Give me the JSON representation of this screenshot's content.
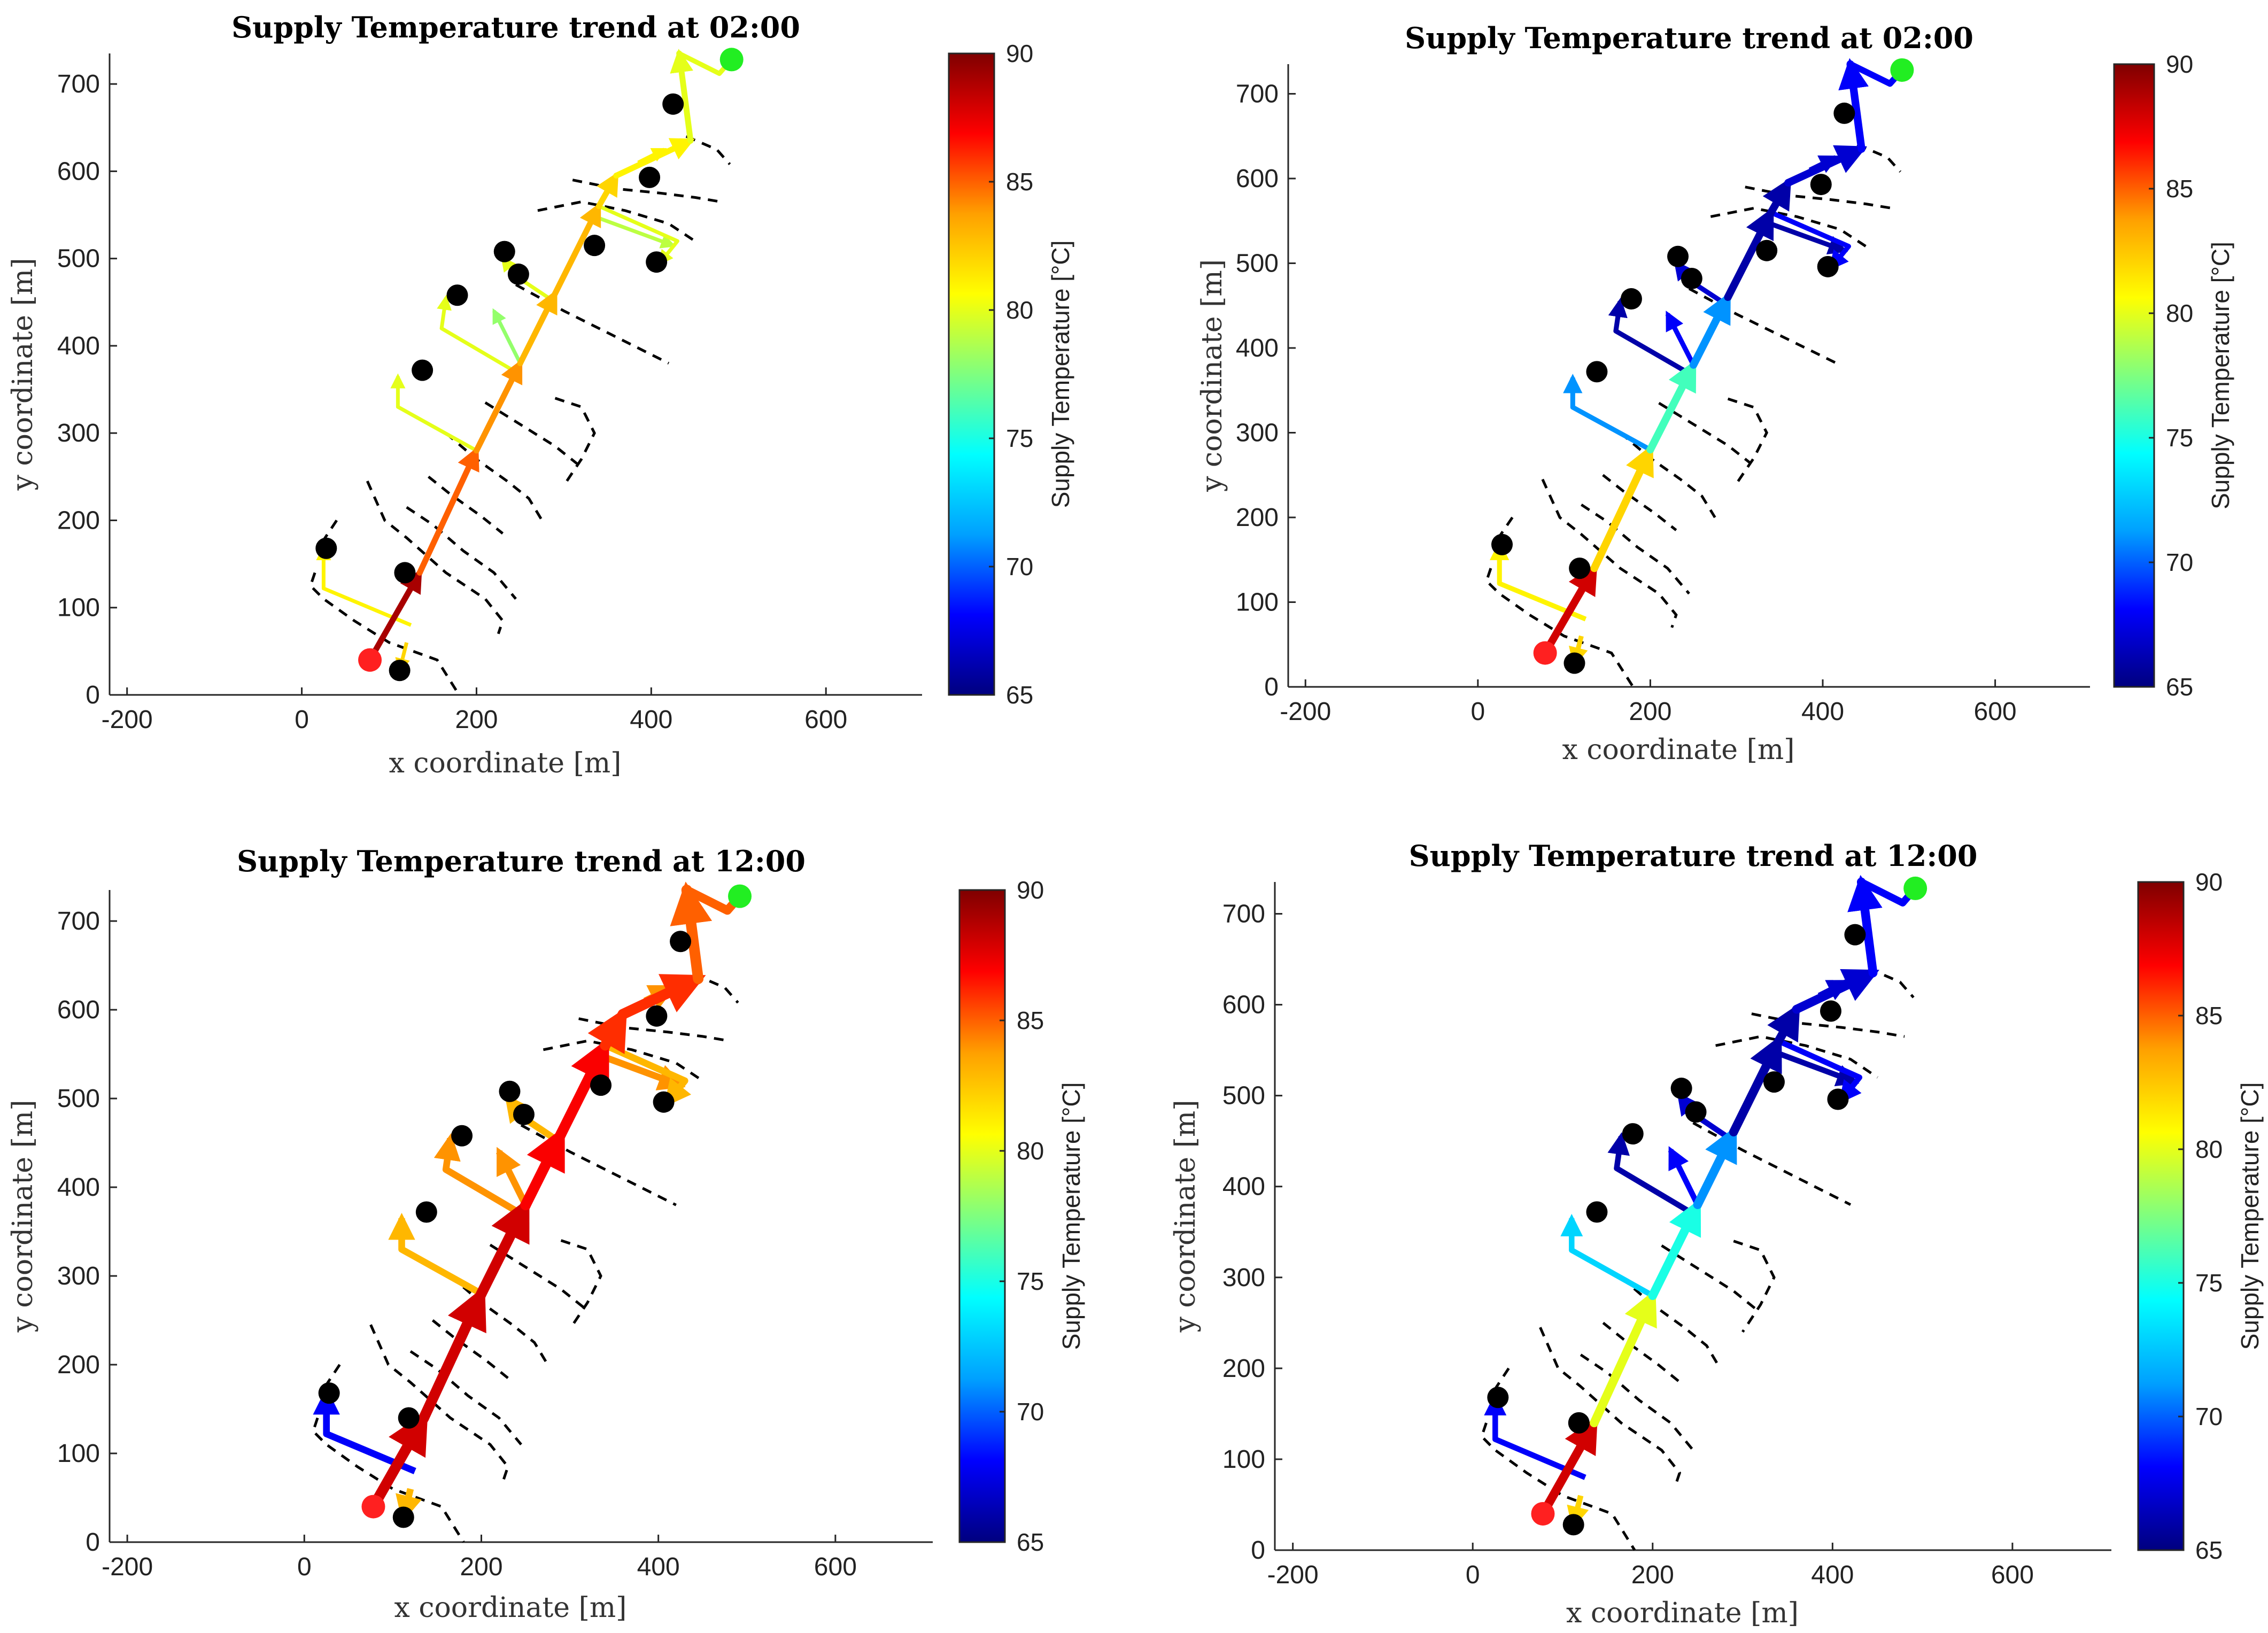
{
  "figure": {
    "description": "Four panels of a district heating network map coloured by supply temperature",
    "colormap": [
      "#00007f",
      "#0000ff",
      "#00a0ff",
      "#00ffff",
      "#7fff7f",
      "#ffff00",
      "#ffa000",
      "#ff0000",
      "#7f0000"
    ],
    "colors": {
      "source_node": "#ff2020",
      "end_node": "#22ee22",
      "building": "#000000",
      "return_line": "#000000"
    }
  },
  "chart_data": [
    {
      "type": "scatter",
      "title": "Supply Temperature trend at 02:00",
      "xlabel": "x coordinate [m]",
      "ylabel": "y coordinate [m]",
      "xlim": [
        -220,
        710
      ],
      "ylim": [
        0,
        735
      ],
      "xticks": [
        -200,
        0,
        200,
        400,
        600
      ],
      "yticks": [
        0,
        100,
        200,
        300,
        400,
        500,
        600,
        700
      ],
      "colorbar": {
        "label": "Supply Temperature [°C]",
        "range": [
          65,
          90
        ],
        "ticks": [
          65,
          70,
          75,
          80,
          85,
          90
        ]
      },
      "trunk_temps": [
        89,
        85,
        84,
        83,
        83,
        82,
        81,
        80
      ],
      "branch_temps": [
        82,
        81,
        80,
        80,
        80,
        79,
        81,
        78,
        80
      ],
      "line_width_scale": 1.0
    },
    {
      "type": "scatter",
      "title": "Supply Temperature trend at 02:00",
      "xlabel": "x coordinate [m]",
      "ylabel": "y coordinate [m]",
      "xlim": [
        -220,
        710
      ],
      "ylim": [
        0,
        735
      ],
      "xticks": [
        -200,
        0,
        200,
        400,
        600
      ],
      "yticks": [
        0,
        100,
        200,
        300,
        400,
        500,
        600,
        700
      ],
      "colorbar": {
        "label": "Supply Temperature [°C]",
        "range": [
          65,
          90
        ],
        "ticks": [
          65,
          70,
          75,
          80,
          85,
          90
        ]
      },
      "trunk_temps": [
        88,
        82,
        76,
        71,
        66,
        66,
        67,
        68
      ],
      "branch_temps": [
        82,
        81,
        71,
        66,
        67,
        66,
        67,
        68,
        68
      ],
      "line_width_scale": 1.3
    },
    {
      "type": "scatter",
      "title": "Supply Temperature trend at 12:00",
      "xlabel": "x coordinate [m]",
      "ylabel": "y coordinate [m]",
      "xlim": [
        -220,
        710
      ],
      "ylim": [
        0,
        735
      ],
      "xticks": [
        -200,
        0,
        200,
        400,
        600
      ],
      "yticks": [
        0,
        100,
        200,
        300,
        400,
        500,
        600,
        700
      ],
      "colorbar": {
        "label": "Supply Temperature [°C]",
        "range": [
          65,
          90
        ],
        "ticks": [
          65,
          70,
          75,
          80,
          85,
          90
        ]
      },
      "trunk_temps": [
        88,
        88,
        88,
        87,
        87,
        86,
        86,
        85
      ],
      "branch_temps": [
        83,
        68,
        83,
        84,
        83,
        84,
        84,
        84,
        83
      ],
      "line_width_scale": 1.8
    },
    {
      "type": "scatter",
      "title": "Supply Temperature trend at 12:00",
      "xlabel": "x coordinate [m]",
      "ylabel": "y coordinate [m]",
      "xlim": [
        -220,
        710
      ],
      "ylim": [
        0,
        735
      ],
      "xticks": [
        -200,
        0,
        200,
        400,
        600
      ],
      "yticks": [
        0,
        100,
        200,
        300,
        400,
        500,
        600,
        700
      ],
      "colorbar": {
        "label": "Supply Temperature [°C]",
        "range": [
          65,
          90
        ],
        "ticks": [
          65,
          70,
          75,
          80,
          85,
          90
        ]
      },
      "trunk_temps": [
        88,
        80,
        75,
        71,
        66,
        66,
        67,
        68
      ],
      "branch_temps": [
        82,
        68,
        73,
        66,
        67,
        66,
        67,
        68,
        68
      ],
      "line_width_scale": 1.5
    }
  ],
  "network": {
    "source": [
      78,
      40
    ],
    "end": [
      492,
      728
    ],
    "trunk": [
      [
        78,
        40
      ],
      [
        135,
        140
      ],
      [
        200,
        280
      ],
      [
        250,
        380
      ],
      [
        290,
        460
      ],
      [
        340,
        560
      ],
      [
        360,
        595
      ],
      [
        445,
        635
      ],
      [
        432,
        735
      ]
    ],
    "trunk_tail": [
      [
        432,
        735
      ],
      [
        478,
        712
      ],
      [
        492,
        728
      ]
    ],
    "branches": [
      {
        "points": [
          [
            120,
            60
          ],
          [
            112,
            28
          ]
        ]
      },
      {
        "points": [
          [
            125,
            80
          ],
          [
            25,
            122
          ],
          [
            25,
            168
          ]
        ]
      },
      {
        "points": [
          [
            200,
            280
          ],
          [
            110,
            330
          ],
          [
            110,
            365
          ]
        ]
      },
      {
        "points": [
          [
            245,
            370
          ],
          [
            160,
            420
          ],
          [
            165,
            455
          ]
        ]
      },
      {
        "points": [
          [
            290,
            450
          ],
          [
            245,
            480
          ],
          [
            230,
            500
          ]
        ]
      },
      {
        "points": [
          [
            330,
            550
          ],
          [
            425,
            515
          ]
        ]
      },
      {
        "points": [
          [
            385,
            610
          ],
          [
            415,
            625
          ]
        ]
      },
      {
        "points": [
          [
            250,
            380
          ],
          [
            220,
            440
          ]
        ]
      },
      {
        "points": [
          [
            340,
            560
          ],
          [
            430,
            520
          ],
          [
            410,
            495
          ]
        ]
      }
    ],
    "buildings": [
      [
        28,
        168
      ],
      [
        112,
        28
      ],
      [
        118,
        140
      ],
      [
        138,
        372
      ],
      [
        178,
        458
      ],
      [
        232,
        508
      ],
      [
        248,
        482
      ],
      [
        335,
        515
      ],
      [
        398,
        593
      ],
      [
        406,
        496
      ],
      [
        425,
        677
      ]
    ],
    "return_lines": [
      [
        [
          15,
          140
        ],
        [
          10,
          125
        ],
        [
          25,
          110
        ],
        [
          60,
          85
        ],
        [
          100,
          60
        ],
        [
          155,
          40
        ],
        [
          180,
          0
        ]
      ],
      [
        [
          40,
          200
        ],
        [
          30,
          185
        ],
        [
          20,
          170
        ]
      ],
      [
        [
          75,
          245
        ],
        [
          95,
          200
        ],
        [
          120,
          180
        ],
        [
          165,
          140
        ],
        [
          210,
          110
        ],
        [
          230,
          85
        ],
        [
          225,
          70
        ]
      ],
      [
        [
          120,
          215
        ],
        [
          150,
          195
        ],
        [
          185,
          165
        ],
        [
          220,
          140
        ],
        [
          245,
          110
        ]
      ],
      [
        [
          145,
          250
        ],
        [
          170,
          230
        ],
        [
          205,
          205
        ],
        [
          230,
          185
        ]
      ],
      [
        [
          165,
          300
        ],
        [
          200,
          270
        ],
        [
          235,
          245
        ],
        [
          260,
          225
        ],
        [
          275,
          200
        ]
      ],
      [
        [
          210,
          335
        ],
        [
          250,
          310
        ],
        [
          290,
          285
        ],
        [
          315,
          265
        ]
      ],
      [
        [
          290,
          340
        ],
        [
          320,
          330
        ],
        [
          335,
          300
        ],
        [
          320,
          270
        ],
        [
          300,
          240
        ]
      ],
      [
        [
          245,
          470
        ],
        [
          300,
          440
        ],
        [
          350,
          415
        ],
        [
          390,
          395
        ],
        [
          420,
          380
        ]
      ],
      [
        [
          270,
          555
        ],
        [
          320,
          565
        ],
        [
          370,
          555
        ],
        [
          420,
          540
        ],
        [
          450,
          520
        ]
      ],
      [
        [
          310,
          590
        ],
        [
          360,
          580
        ],
        [
          410,
          575
        ],
        [
          450,
          570
        ],
        [
          480,
          565
        ]
      ],
      [
        [
          440,
          640
        ],
        [
          475,
          625
        ],
        [
          490,
          608
        ]
      ]
    ]
  }
}
